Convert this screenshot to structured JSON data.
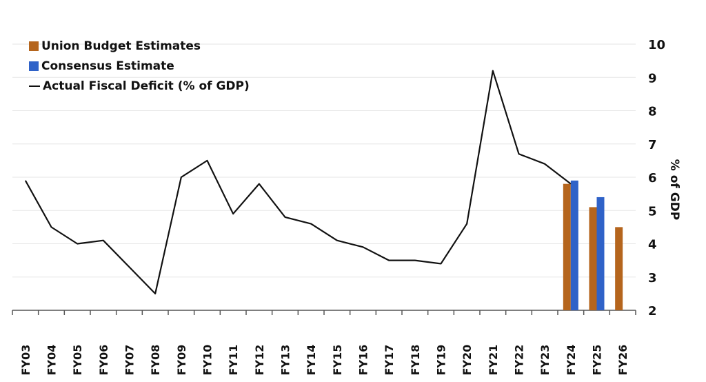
{
  "chart_data": {
    "type": "bar+line",
    "title": "",
    "xlabel": "",
    "ylabel": "% of GDP",
    "ylim": [
      2,
      10
    ],
    "yticks": [
      2,
      3,
      4,
      5,
      6,
      7,
      8,
      9,
      10
    ],
    "y_axis_side": "right",
    "grid": true,
    "legend_position": "top-left",
    "categories": [
      "FY03",
      "FY04",
      "FY05",
      "FY06",
      "FY07",
      "FY08",
      "FY09",
      "FY10",
      "FY11",
      "FY12",
      "FY13",
      "FY14",
      "FY15",
      "FY16",
      "FY17",
      "FY18",
      "FY19",
      "FY20",
      "FY21",
      "FY22",
      "FY23",
      "FY24",
      "FY25",
      "FY26"
    ],
    "series": [
      {
        "name": "Union Budget Estimates",
        "type": "bar",
        "color": "#b5651d",
        "values": [
          null,
          null,
          null,
          null,
          null,
          null,
          null,
          null,
          null,
          null,
          null,
          null,
          null,
          null,
          null,
          null,
          null,
          null,
          null,
          null,
          null,
          5.8,
          5.1,
          4.5
        ]
      },
      {
        "name": "Consensus Estimate",
        "type": "bar",
        "color": "#2f62c8",
        "values": [
          null,
          null,
          null,
          null,
          null,
          null,
          null,
          null,
          null,
          null,
          null,
          null,
          null,
          null,
          null,
          null,
          null,
          null,
          null,
          null,
          null,
          5.9,
          5.4,
          null
        ]
      },
      {
        "name": "Actual Fiscal Deficit (% of GDP)",
        "type": "line",
        "color": "#111111",
        "values": [
          5.9,
          4.5,
          4.0,
          4.1,
          3.3,
          2.5,
          6.0,
          6.5,
          4.9,
          5.8,
          4.8,
          4.6,
          4.1,
          3.9,
          3.5,
          3.5,
          3.4,
          4.6,
          9.2,
          6.7,
          6.4,
          5.8,
          null,
          null
        ]
      }
    ]
  }
}
